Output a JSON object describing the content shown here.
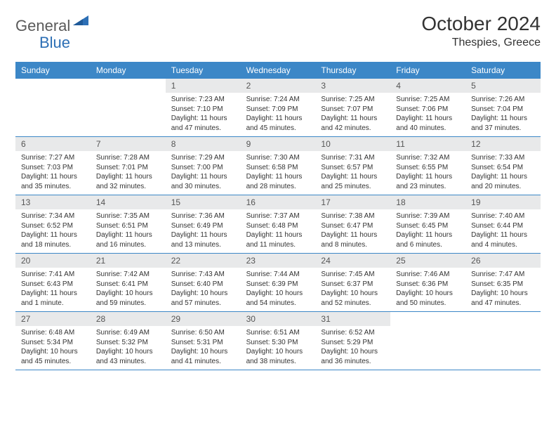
{
  "brand": {
    "part1": "General",
    "part2": "Blue"
  },
  "title": "October 2024",
  "location": "Thespies, Greece",
  "colors": {
    "header_bg": "#3c87c7",
    "header_text": "#ffffff",
    "daynum_bg": "#e8e9ea",
    "text": "#333333",
    "logo_gray": "#5a5a5a",
    "logo_blue": "#2d6fb5",
    "row_border": "#3c87c7"
  },
  "day_names": [
    "Sunday",
    "Monday",
    "Tuesday",
    "Wednesday",
    "Thursday",
    "Friday",
    "Saturday"
  ],
  "weeks": [
    [
      {
        "empty": true
      },
      {
        "empty": true
      },
      {
        "num": "1",
        "sunrise": "Sunrise: 7:23 AM",
        "sunset": "Sunset: 7:10 PM",
        "daylight": "Daylight: 11 hours and 47 minutes."
      },
      {
        "num": "2",
        "sunrise": "Sunrise: 7:24 AM",
        "sunset": "Sunset: 7:09 PM",
        "daylight": "Daylight: 11 hours and 45 minutes."
      },
      {
        "num": "3",
        "sunrise": "Sunrise: 7:25 AM",
        "sunset": "Sunset: 7:07 PM",
        "daylight": "Daylight: 11 hours and 42 minutes."
      },
      {
        "num": "4",
        "sunrise": "Sunrise: 7:25 AM",
        "sunset": "Sunset: 7:06 PM",
        "daylight": "Daylight: 11 hours and 40 minutes."
      },
      {
        "num": "5",
        "sunrise": "Sunrise: 7:26 AM",
        "sunset": "Sunset: 7:04 PM",
        "daylight": "Daylight: 11 hours and 37 minutes."
      }
    ],
    [
      {
        "num": "6",
        "sunrise": "Sunrise: 7:27 AM",
        "sunset": "Sunset: 7:03 PM",
        "daylight": "Daylight: 11 hours and 35 minutes."
      },
      {
        "num": "7",
        "sunrise": "Sunrise: 7:28 AM",
        "sunset": "Sunset: 7:01 PM",
        "daylight": "Daylight: 11 hours and 32 minutes."
      },
      {
        "num": "8",
        "sunrise": "Sunrise: 7:29 AM",
        "sunset": "Sunset: 7:00 PM",
        "daylight": "Daylight: 11 hours and 30 minutes."
      },
      {
        "num": "9",
        "sunrise": "Sunrise: 7:30 AM",
        "sunset": "Sunset: 6:58 PM",
        "daylight": "Daylight: 11 hours and 28 minutes."
      },
      {
        "num": "10",
        "sunrise": "Sunrise: 7:31 AM",
        "sunset": "Sunset: 6:57 PM",
        "daylight": "Daylight: 11 hours and 25 minutes."
      },
      {
        "num": "11",
        "sunrise": "Sunrise: 7:32 AM",
        "sunset": "Sunset: 6:55 PM",
        "daylight": "Daylight: 11 hours and 23 minutes."
      },
      {
        "num": "12",
        "sunrise": "Sunrise: 7:33 AM",
        "sunset": "Sunset: 6:54 PM",
        "daylight": "Daylight: 11 hours and 20 minutes."
      }
    ],
    [
      {
        "num": "13",
        "sunrise": "Sunrise: 7:34 AM",
        "sunset": "Sunset: 6:52 PM",
        "daylight": "Daylight: 11 hours and 18 minutes."
      },
      {
        "num": "14",
        "sunrise": "Sunrise: 7:35 AM",
        "sunset": "Sunset: 6:51 PM",
        "daylight": "Daylight: 11 hours and 16 minutes."
      },
      {
        "num": "15",
        "sunrise": "Sunrise: 7:36 AM",
        "sunset": "Sunset: 6:49 PM",
        "daylight": "Daylight: 11 hours and 13 minutes."
      },
      {
        "num": "16",
        "sunrise": "Sunrise: 7:37 AM",
        "sunset": "Sunset: 6:48 PM",
        "daylight": "Daylight: 11 hours and 11 minutes."
      },
      {
        "num": "17",
        "sunrise": "Sunrise: 7:38 AM",
        "sunset": "Sunset: 6:47 PM",
        "daylight": "Daylight: 11 hours and 8 minutes."
      },
      {
        "num": "18",
        "sunrise": "Sunrise: 7:39 AM",
        "sunset": "Sunset: 6:45 PM",
        "daylight": "Daylight: 11 hours and 6 minutes."
      },
      {
        "num": "19",
        "sunrise": "Sunrise: 7:40 AM",
        "sunset": "Sunset: 6:44 PM",
        "daylight": "Daylight: 11 hours and 4 minutes."
      }
    ],
    [
      {
        "num": "20",
        "sunrise": "Sunrise: 7:41 AM",
        "sunset": "Sunset: 6:43 PM",
        "daylight": "Daylight: 11 hours and 1 minute."
      },
      {
        "num": "21",
        "sunrise": "Sunrise: 7:42 AM",
        "sunset": "Sunset: 6:41 PM",
        "daylight": "Daylight: 10 hours and 59 minutes."
      },
      {
        "num": "22",
        "sunrise": "Sunrise: 7:43 AM",
        "sunset": "Sunset: 6:40 PM",
        "daylight": "Daylight: 10 hours and 57 minutes."
      },
      {
        "num": "23",
        "sunrise": "Sunrise: 7:44 AM",
        "sunset": "Sunset: 6:39 PM",
        "daylight": "Daylight: 10 hours and 54 minutes."
      },
      {
        "num": "24",
        "sunrise": "Sunrise: 7:45 AM",
        "sunset": "Sunset: 6:37 PM",
        "daylight": "Daylight: 10 hours and 52 minutes."
      },
      {
        "num": "25",
        "sunrise": "Sunrise: 7:46 AM",
        "sunset": "Sunset: 6:36 PM",
        "daylight": "Daylight: 10 hours and 50 minutes."
      },
      {
        "num": "26",
        "sunrise": "Sunrise: 7:47 AM",
        "sunset": "Sunset: 6:35 PM",
        "daylight": "Daylight: 10 hours and 47 minutes."
      }
    ],
    [
      {
        "num": "27",
        "sunrise": "Sunrise: 6:48 AM",
        "sunset": "Sunset: 5:34 PM",
        "daylight": "Daylight: 10 hours and 45 minutes."
      },
      {
        "num": "28",
        "sunrise": "Sunrise: 6:49 AM",
        "sunset": "Sunset: 5:32 PM",
        "daylight": "Daylight: 10 hours and 43 minutes."
      },
      {
        "num": "29",
        "sunrise": "Sunrise: 6:50 AM",
        "sunset": "Sunset: 5:31 PM",
        "daylight": "Daylight: 10 hours and 41 minutes."
      },
      {
        "num": "30",
        "sunrise": "Sunrise: 6:51 AM",
        "sunset": "Sunset: 5:30 PM",
        "daylight": "Daylight: 10 hours and 38 minutes."
      },
      {
        "num": "31",
        "sunrise": "Sunrise: 6:52 AM",
        "sunset": "Sunset: 5:29 PM",
        "daylight": "Daylight: 10 hours and 36 minutes."
      },
      {
        "empty": true
      },
      {
        "empty": true
      }
    ]
  ]
}
